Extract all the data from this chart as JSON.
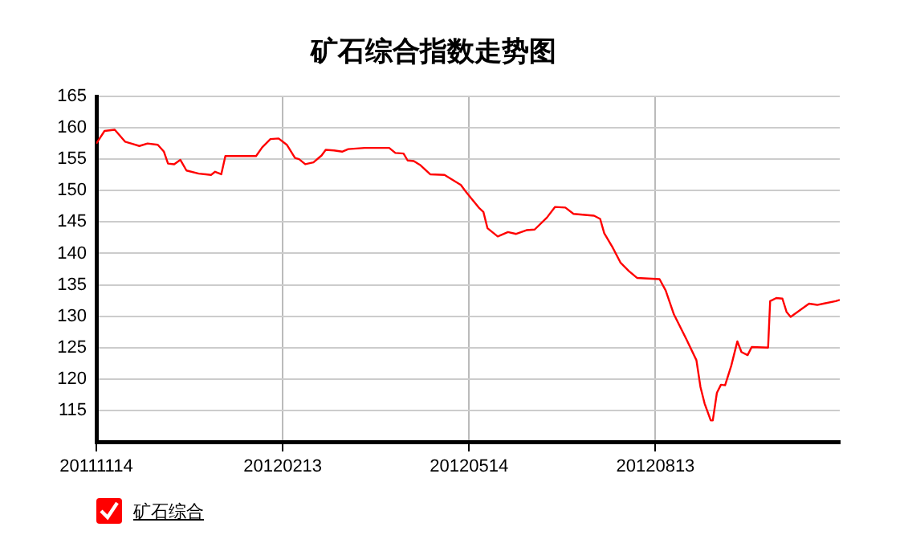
{
  "chart_data": {
    "type": "line",
    "title": "矿石综合指数走势图",
    "x": [
      "2011-11-14",
      "2011-11-18",
      "2011-11-23",
      "2011-11-28",
      "2011-12-02",
      "2011-12-05",
      "2011-12-09",
      "2011-12-14",
      "2011-12-17",
      "2011-12-19",
      "2011-12-22",
      "2011-12-25",
      "2011-12-28",
      "2012-01-03",
      "2012-01-09",
      "2012-01-11",
      "2012-01-14",
      "2012-01-16",
      "2012-01-31",
      "2012-02-03",
      "2012-02-07",
      "2012-02-11",
      "2012-02-15",
      "2012-02-19",
      "2012-02-21",
      "2012-02-24",
      "2012-02-28",
      "2012-03-03",
      "2012-03-05",
      "2012-03-09",
      "2012-03-13",
      "2012-03-16",
      "2012-03-24",
      "2012-04-05",
      "2012-04-08",
      "2012-04-12",
      "2012-04-14",
      "2012-04-17",
      "2012-04-20",
      "2012-04-25",
      "2012-05-02",
      "2012-05-06",
      "2012-05-10",
      "2012-05-12",
      "2012-05-15",
      "2012-05-19",
      "2012-05-21",
      "2012-05-23",
      "2012-05-28",
      "2012-06-02",
      "2012-06-06",
      "2012-06-11",
      "2012-06-15",
      "2012-06-21",
      "2012-06-25",
      "2012-06-30",
      "2012-07-04",
      "2012-07-14",
      "2012-07-17",
      "2012-07-19",
      "2012-07-23",
      "2012-07-27",
      "2012-07-31",
      "2012-08-04",
      "2012-08-15",
      "2012-08-18",
      "2012-08-22",
      "2012-08-28",
      "2012-09-02",
      "2012-09-04",
      "2012-09-06",
      "2012-09-09",
      "2012-09-10",
      "2012-09-12",
      "2012-09-14",
      "2012-09-16",
      "2012-09-19",
      "2012-09-22",
      "2012-09-24",
      "2012-09-27",
      "2012-09-29",
      "2012-10-07",
      "2012-10-08",
      "2012-10-11",
      "2012-10-14",
      "2012-10-16",
      "2012-10-18",
      "2012-10-27",
      "2012-10-31",
      "2012-11-03",
      "2012-11-09",
      "2012-11-11"
    ],
    "series": [
      {
        "name": "矿石综合",
        "color": "#ff0000",
        "values": [
          157.5,
          159.5,
          159.7,
          157.8,
          157.4,
          157.1,
          157.5,
          157.3,
          156.2,
          154.3,
          154.2,
          154.9,
          153.2,
          152.7,
          152.5,
          153.0,
          152.6,
          155.5,
          155.5,
          156.9,
          158.2,
          158.3,
          157.3,
          155.2,
          155.0,
          154.2,
          154.5,
          155.6,
          156.5,
          156.4,
          156.2,
          156.6,
          156.8,
          156.8,
          156.0,
          155.9,
          154.8,
          154.7,
          154.1,
          152.6,
          152.5,
          151.7,
          150.9,
          150.0,
          148.8,
          147.2,
          146.6,
          144.0,
          142.7,
          143.4,
          143.1,
          143.7,
          143.8,
          145.7,
          147.4,
          147.3,
          146.3,
          146.0,
          145.5,
          143.2,
          141.0,
          138.5,
          137.2,
          136.1,
          135.9,
          134.1,
          130.3,
          126.4,
          123.0,
          118.7,
          116.1,
          113.4,
          113.4,
          117.8,
          119.1,
          119.0,
          122.1,
          126.0,
          124.3,
          123.8,
          125.1,
          125.0,
          132.4,
          132.9,
          132.8,
          130.7,
          129.9,
          132.0,
          131.8,
          132.0,
          132.4,
          132.6
        ]
      }
    ],
    "xlim": [
      "2011-11-14",
      "2012-11-11"
    ],
    "xticks": [
      {
        "value": "2011-11-14",
        "label": "20111114"
      },
      {
        "value": "2012-02-13",
        "label": "20120213"
      },
      {
        "value": "2012-05-14",
        "label": "20120514"
      },
      {
        "value": "2012-08-13",
        "label": "20120813"
      }
    ],
    "ylim": [
      110,
      165
    ],
    "yticks": [
      115,
      120,
      125,
      130,
      135,
      140,
      145,
      150,
      155,
      160,
      165
    ],
    "grid": true,
    "legend": "bottom left",
    "marker": "none",
    "line_style": "solid"
  }
}
